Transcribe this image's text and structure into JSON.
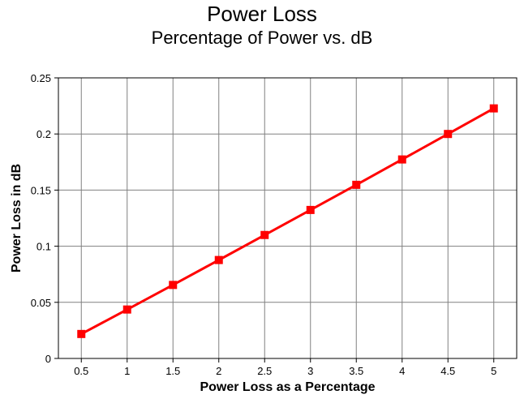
{
  "chart_data": {
    "type": "line",
    "title": "Power Loss",
    "subtitle": "Percentage of Power vs. dB",
    "xlabel": "Power Loss as a Percentage",
    "ylabel": "Power Loss in dB",
    "categories": [
      "0.5",
      "1",
      "1.5",
      "2",
      "2.5",
      "3",
      "3.5",
      "4",
      "4.5",
      "5"
    ],
    "series": [
      {
        "values": [
          0.0218,
          0.0436,
          0.0655,
          0.0877,
          0.11,
          0.1323,
          0.1547,
          0.1773,
          0.2,
          0.2228
        ],
        "color": "#ff0000"
      }
    ],
    "ylim": [
      0,
      0.25
    ],
    "yticks": [
      "0",
      "0.05",
      "0.1",
      "0.15",
      "0.2",
      "0.25"
    ],
    "grid": true,
    "marker": "square"
  }
}
